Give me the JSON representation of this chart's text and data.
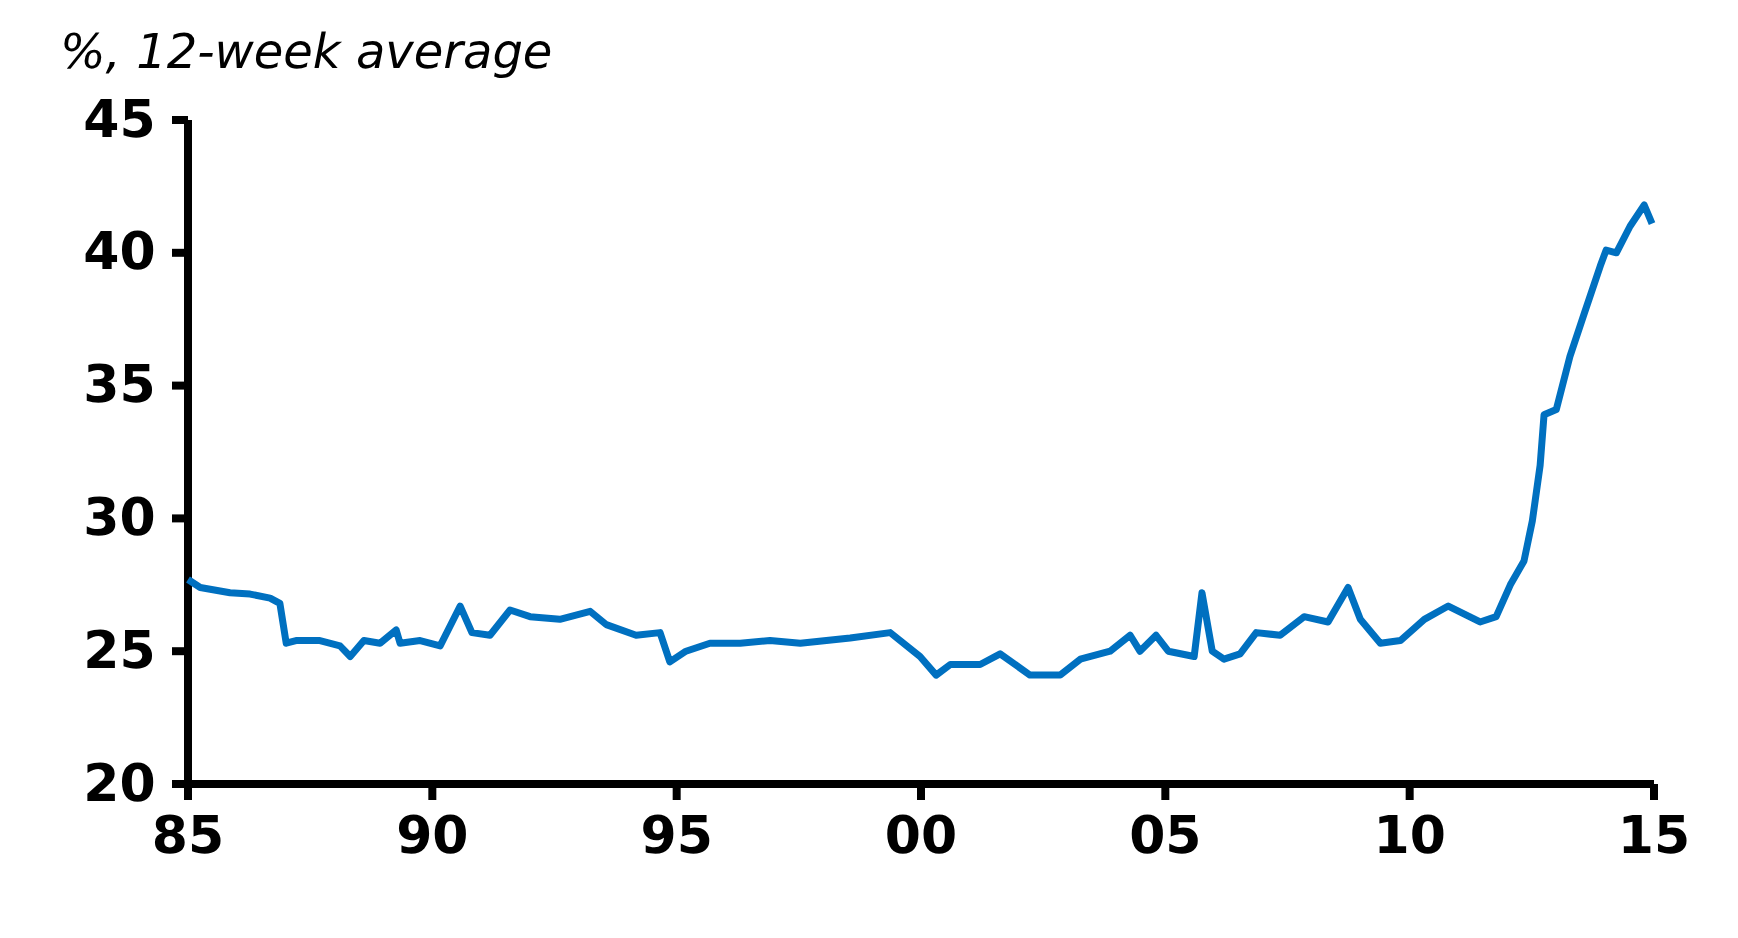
{
  "chart_data": {
    "type": "line",
    "title": "%, 12-week average",
    "x": [
      1985.0,
      1985.25,
      1985.86,
      1986.27,
      1986.68,
      1986.88,
      1987.01,
      1987.21,
      1987.7,
      1988.11,
      1988.32,
      1988.6,
      1988.93,
      1989.26,
      1989.34,
      1989.75,
      1990.16,
      1990.57,
      1990.81,
      1991.18,
      1991.59,
      1992.0,
      1992.61,
      1993.23,
      1993.56,
      1994.17,
      1994.66,
      1994.86,
      1995.19,
      1995.68,
      1996.3,
      1996.91,
      1997.53,
      1998.55,
      1999.37,
      1999.98,
      2000.31,
      2000.6,
      2001.21,
      2001.62,
      2002.23,
      2002.85,
      2003.26,
      2003.87,
      2004.28,
      2004.48,
      2004.81,
      2005.06,
      2005.59,
      2005.75,
      2005.96,
      2006.2,
      2006.53,
      2006.86,
      2007.35,
      2007.84,
      2008.33,
      2008.74,
      2008.99,
      2009.4,
      2009.81,
      2010.3,
      2010.79,
      2011.44,
      2011.77,
      2012.06,
      2012.34,
      2012.51,
      2012.67,
      2012.75,
      2013.0,
      2013.28,
      2013.57,
      2013.9,
      2014.02,
      2014.23,
      2014.51,
      2014.8,
      2014.96
    ],
    "series": [
      {
        "color": "#0070c0",
        "values": [
          27.7,
          27.4,
          27.2,
          27.15,
          27.0,
          26.8,
          25.3,
          25.4,
          25.4,
          25.2,
          24.8,
          25.4,
          25.3,
          25.8,
          25.3,
          25.4,
          25.2,
          26.7,
          25.7,
          25.6,
          26.55,
          26.3,
          26.2,
          26.5,
          26.0,
          25.6,
          25.7,
          24.6,
          25.0,
          25.3,
          25.3,
          25.4,
          25.3,
          25.5,
          25.7,
          24.8,
          24.1,
          24.5,
          24.5,
          24.9,
          24.1,
          24.1,
          24.7,
          25.0,
          25.6,
          25.0,
          25.6,
          25.0,
          24.8,
          27.2,
          25.0,
          24.7,
          24.9,
          25.7,
          25.6,
          26.3,
          26.1,
          27.4,
          26.2,
          25.3,
          25.4,
          26.2,
          26.7,
          26.1,
          26.3,
          27.5,
          28.4,
          29.9,
          32.0,
          33.9,
          34.1,
          36.1,
          37.7,
          39.5,
          40.1,
          40.0,
          41.0,
          41.8,
          41.1
        ]
      }
    ],
    "xlim": [
      1985,
      2015
    ],
    "xticks": [
      {
        "value": 1985,
        "label": "85"
      },
      {
        "value": 1990,
        "label": "90"
      },
      {
        "value": 1995,
        "label": "95"
      },
      {
        "value": 2000,
        "label": "00"
      },
      {
        "value": 2005,
        "label": "05"
      },
      {
        "value": 2010,
        "label": "10"
      },
      {
        "value": 2015,
        "label": "15"
      }
    ],
    "ylim": [
      20,
      45
    ],
    "yticks": [
      20,
      25,
      30,
      35,
      40,
      45
    ],
    "grid": false,
    "line_style": "solid",
    "marker": "none"
  }
}
